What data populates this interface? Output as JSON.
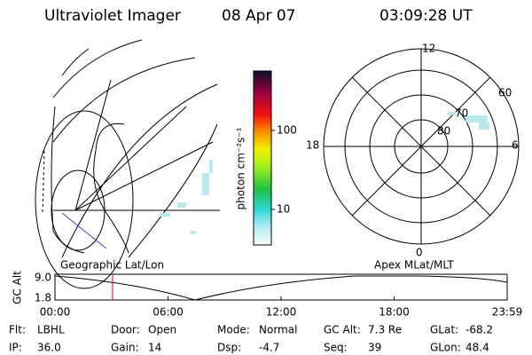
{
  "header": {
    "title": "Ultraviolet Imager",
    "date": "08 Apr 07",
    "time": "03:09:28 UT"
  },
  "left_panel": {
    "label": "Geographic Lat/Lon"
  },
  "colorbar": {
    "label": "photon cm⁻²s⁻¹",
    "ticks": [
      "100",
      "10"
    ]
  },
  "polar_panel": {
    "label": "Apex MLat/MLT",
    "mlt_labels": [
      "12",
      "18",
      "6",
      "0"
    ],
    "lat_labels": [
      "60",
      "70",
      "80"
    ]
  },
  "altitude_plot": {
    "ylabel": "GC Alt",
    "yticks": [
      "9.0",
      "1.8"
    ],
    "xticks": [
      "00:00",
      "06:00",
      "12:00",
      "18:00",
      "23:59"
    ]
  },
  "info": [
    [
      {
        "label": "Flt:",
        "value": "LBHL"
      },
      {
        "label": "Door:",
        "value": "Open"
      },
      {
        "label": "Mode:",
        "value": "Normal"
      },
      {
        "label": "GC Alt:",
        "value": "7.3 Re"
      },
      {
        "label": "GLat:",
        "value": "-68.2"
      }
    ],
    [
      {
        "label": "IP:",
        "value": "36.0"
      },
      {
        "label": "Gain:",
        "value": "14"
      },
      {
        "label": "Dsp:",
        "value": "-4.7"
      },
      {
        "label": "Seq:",
        "value": "39"
      },
      {
        "label": "GLon:",
        "value": "48.4"
      }
    ]
  ]
}
